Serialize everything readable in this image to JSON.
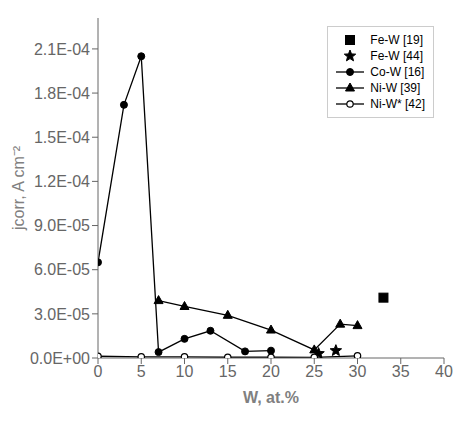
{
  "chart_data": {
    "type": "line",
    "xlabel": "W, at.%",
    "ylabel": "jcorr, A cm⁻²",
    "xlim": [
      0,
      40
    ],
    "ylim": [
      0,
      0.000231
    ],
    "xticks": [
      0,
      5,
      10,
      15,
      20,
      25,
      30,
      35,
      40
    ],
    "yticks": [
      {
        "value": 0.0,
        "label": "0.0E+00"
      },
      {
        "value": 3e-05,
        "label": "3.0E-05"
      },
      {
        "value": 6e-05,
        "label": "6.0E-05"
      },
      {
        "value": 9e-05,
        "label": "9.0E-05"
      },
      {
        "value": 0.00012,
        "label": "1.2E-04"
      },
      {
        "value": 0.00015,
        "label": "1.5E-04"
      },
      {
        "value": 0.00018,
        "label": "1.8E-04"
      },
      {
        "value": 0.00021,
        "label": "2.1E-04"
      }
    ],
    "grid": false,
    "legend": "upper right",
    "series": [
      {
        "name": "Fe-W [19]",
        "type": "scatter",
        "color": "black",
        "marker": "square",
        "line_style": "none",
        "x": [
          33
        ],
        "values": [
          4.1e-05
        ]
      },
      {
        "name": "Fe-W [44]",
        "type": "scatter",
        "color": "black",
        "marker": "star",
        "line_style": "none",
        "x": [
          25.5,
          27.5
        ],
        "values": [
          3e-06,
          5e-06
        ]
      },
      {
        "name": "Co-W [16]",
        "type": "line",
        "color": "black",
        "marker": "circle",
        "line_style": "solid",
        "x": [
          0,
          3,
          5,
          7,
          10,
          13,
          17,
          20
        ],
        "values": [
          6.5e-05,
          0.000172,
          0.000205,
          4e-06,
          1.3e-05,
          1.85e-05,
          4.5e-06,
          5e-06
        ]
      },
      {
        "name": "Ni-W [39]",
        "type": "line",
        "color": "black",
        "marker": "triangle",
        "line_style": "solid",
        "x": [
          7,
          10,
          15,
          20,
          25,
          28,
          30
        ],
        "values": [
          3.9e-05,
          3.5e-05,
          2.9e-05,
          1.9e-05,
          5.5e-06,
          2.3e-05,
          2.2e-05
        ]
      },
      {
        "name": "Ni-W* [42]",
        "type": "line",
        "color": "black",
        "marker": "open_circle",
        "line_style": "solid",
        "x": [
          0,
          5,
          10,
          15,
          20,
          25,
          30
        ],
        "values": [
          1.2e-06,
          8e-07,
          8e-07,
          5e-07,
          5e-07,
          4e-07,
          1.5e-06
        ]
      }
    ]
  }
}
